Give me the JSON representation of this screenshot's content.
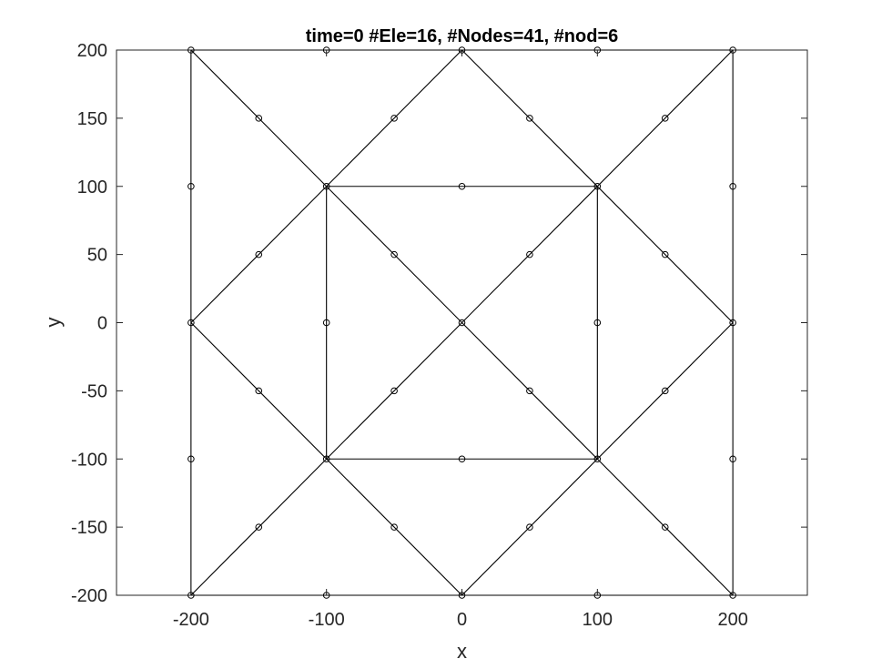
{
  "chart_data": {
    "type": "scatter",
    "title": "time=0  #Ele=16, #Nodes=41, #nod=6",
    "xlabel": "x",
    "ylabel": "y",
    "xlim": [
      -255,
      255
    ],
    "ylim": [
      -200,
      200
    ],
    "xticks": [
      -200,
      -100,
      0,
      100,
      200
    ],
    "yticks": [
      200,
      150,
      100,
      50,
      0,
      -50,
      -100,
      -150,
      -200
    ],
    "grid": false,
    "colors": {
      "lines": "#000000",
      "axes": "#262626",
      "background": "#ffffff"
    },
    "segments": [
      [
        [
          -200,
          200
        ],
        [
          200,
          200
        ]
      ],
      [
        [
          -200,
          -200
        ],
        [
          200,
          -200
        ]
      ],
      [
        [
          -200,
          -200
        ],
        [
          -200,
          200
        ]
      ],
      [
        [
          200,
          -200
        ],
        [
          200,
          200
        ]
      ],
      [
        [
          -100,
          100
        ],
        [
          100,
          100
        ]
      ],
      [
        [
          -100,
          -100
        ],
        [
          100,
          -100
        ]
      ],
      [
        [
          -100,
          -100
        ],
        [
          -100,
          100
        ]
      ],
      [
        [
          100,
          -100
        ],
        [
          100,
          100
        ]
      ],
      [
        [
          -200,
          200
        ],
        [
          200,
          -200
        ]
      ],
      [
        [
          -200,
          -200
        ],
        [
          200,
          200
        ]
      ],
      [
        [
          -200,
          0
        ],
        [
          0,
          200
        ]
      ],
      [
        [
          0,
          200
        ],
        [
          200,
          0
        ]
      ],
      [
        [
          200,
          0
        ],
        [
          0,
          -200
        ]
      ],
      [
        [
          0,
          -200
        ],
        [
          -200,
          0
        ]
      ]
    ],
    "nodes": [
      [
        -200,
        200
      ],
      [
        -100,
        200
      ],
      [
        0,
        200
      ],
      [
        100,
        200
      ],
      [
        200,
        200
      ],
      [
        -150,
        150
      ],
      [
        -50,
        150
      ],
      [
        50,
        150
      ],
      [
        150,
        150
      ],
      [
        -200,
        100
      ],
      [
        -100,
        100
      ],
      [
        0,
        100
      ],
      [
        100,
        100
      ],
      [
        200,
        100
      ],
      [
        -150,
        50
      ],
      [
        -50,
        50
      ],
      [
        50,
        50
      ],
      [
        150,
        50
      ],
      [
        -200,
        0
      ],
      [
        -100,
        0
      ],
      [
        0,
        0
      ],
      [
        100,
        0
      ],
      [
        200,
        0
      ],
      [
        -150,
        -50
      ],
      [
        -50,
        -50
      ],
      [
        50,
        -50
      ],
      [
        150,
        -50
      ],
      [
        -200,
        -100
      ],
      [
        -100,
        -100
      ],
      [
        0,
        -100
      ],
      [
        100,
        -100
      ],
      [
        200,
        -100
      ],
      [
        -150,
        -150
      ],
      [
        -50,
        -150
      ],
      [
        50,
        -150
      ],
      [
        150,
        -150
      ],
      [
        -200,
        -200
      ],
      [
        -100,
        -200
      ],
      [
        0,
        -200
      ],
      [
        100,
        -200
      ],
      [
        200,
        -200
      ]
    ]
  }
}
